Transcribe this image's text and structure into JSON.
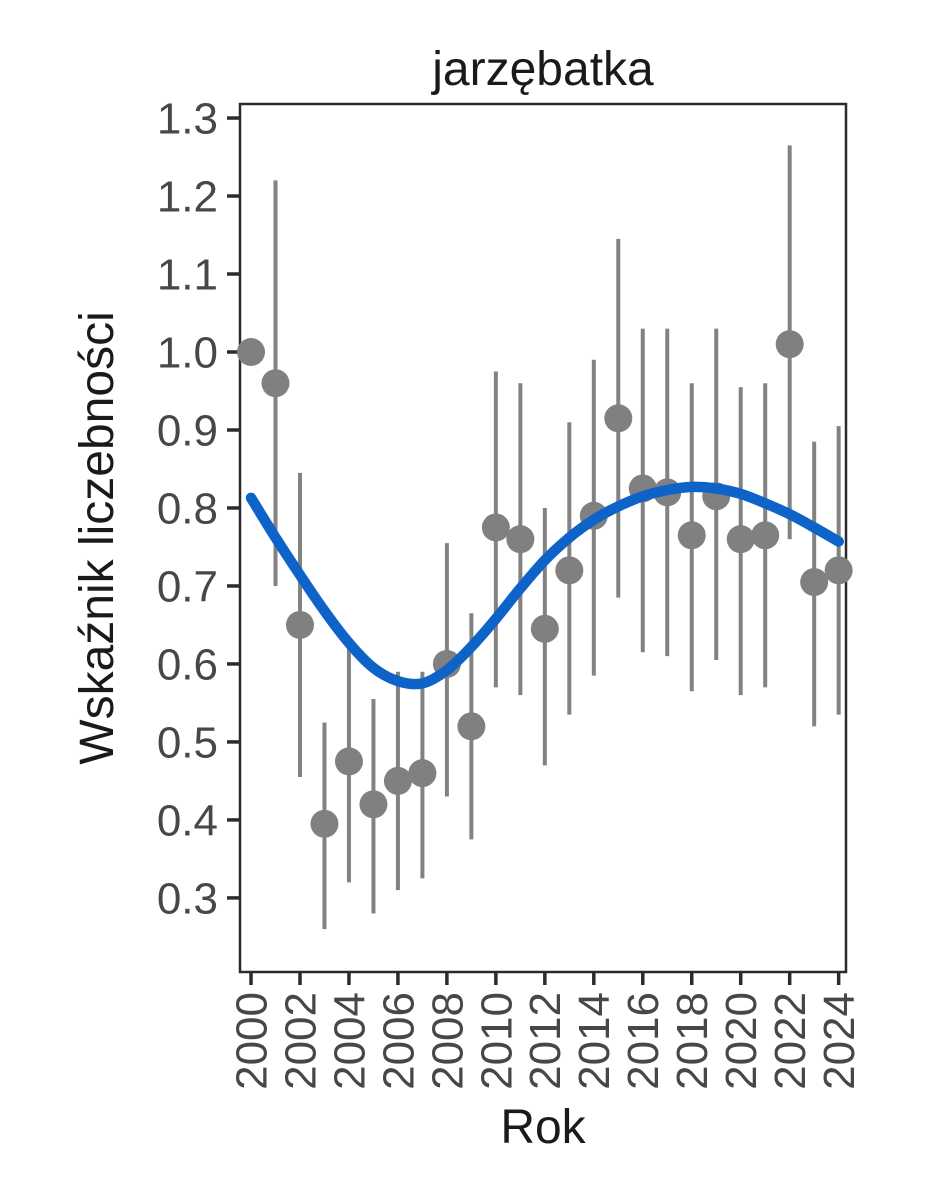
{
  "chart_data": {
    "type": "scatter",
    "title": "jarzębatka",
    "xlabel": "Rok",
    "ylabel": "Wskaźnik liczebności",
    "grid": false,
    "legend": "none",
    "xlim": [
      1999.55,
      2024.3
    ],
    "ylim": [
      0.205,
      1.318
    ],
    "x_ticks": [
      2000,
      2002,
      2004,
      2006,
      2008,
      2010,
      2012,
      2014,
      2016,
      2018,
      2020,
      2022,
      2024
    ],
    "x_tick_labels": [
      "2000",
      "2002",
      "2004",
      "2006",
      "2008",
      "2010",
      "2012",
      "2014",
      "2016",
      "2018",
      "2020",
      "2022",
      "2024"
    ],
    "y_ticks": [
      0.3,
      0.4,
      0.5,
      0.6,
      0.7,
      0.8,
      0.9,
      1.0,
      1.1,
      1.2,
      1.3
    ],
    "y_tick_labels": [
      "0.3",
      "0.4",
      "0.5",
      "0.6",
      "0.7",
      "0.8",
      "0.9",
      "1.0",
      "1.1",
      "1.2",
      "1.3"
    ],
    "colors": {
      "point": "#808080",
      "errorbar": "#828282",
      "smooth_line": "#0D63C8",
      "axis": "#2b2b2b",
      "tick_text": "#474747",
      "title_text": "#1a1a1a"
    },
    "series": [
      {
        "name": "Wskaźnik liczebności (punkty z przedziałami)",
        "points": [
          {
            "year": 2000,
            "value": 1.0,
            "lo": null,
            "hi": null
          },
          {
            "year": 2001,
            "value": 0.96,
            "lo": 0.7,
            "hi": 1.22
          },
          {
            "year": 2002,
            "value": 0.65,
            "lo": 0.455,
            "hi": 0.845
          },
          {
            "year": 2003,
            "value": 0.395,
            "lo": 0.26,
            "hi": 0.525
          },
          {
            "year": 2004,
            "value": 0.475,
            "lo": 0.32,
            "hi": 0.63
          },
          {
            "year": 2005,
            "value": 0.42,
            "lo": 0.28,
            "hi": 0.555
          },
          {
            "year": 2006,
            "value": 0.45,
            "lo": 0.31,
            "hi": 0.59
          },
          {
            "year": 2007,
            "value": 0.46,
            "lo": 0.325,
            "hi": 0.59
          },
          {
            "year": 2008,
            "value": 0.6,
            "lo": 0.43,
            "hi": 0.755
          },
          {
            "year": 2009,
            "value": 0.52,
            "lo": 0.375,
            "hi": 0.665
          },
          {
            "year": 2010,
            "value": 0.775,
            "lo": 0.57,
            "hi": 0.975
          },
          {
            "year": 2011,
            "value": 0.76,
            "lo": 0.56,
            "hi": 0.96
          },
          {
            "year": 2012,
            "value": 0.645,
            "lo": 0.47,
            "hi": 0.8
          },
          {
            "year": 2013,
            "value": 0.72,
            "lo": 0.535,
            "hi": 0.91
          },
          {
            "year": 2014,
            "value": 0.79,
            "lo": 0.585,
            "hi": 0.99
          },
          {
            "year": 2015,
            "value": 0.915,
            "lo": 0.685,
            "hi": 1.145
          },
          {
            "year": 2016,
            "value": 0.825,
            "lo": 0.615,
            "hi": 1.03
          },
          {
            "year": 2017,
            "value": 0.82,
            "lo": 0.61,
            "hi": 1.03
          },
          {
            "year": 2018,
            "value": 0.765,
            "lo": 0.565,
            "hi": 0.96
          },
          {
            "year": 2019,
            "value": 0.815,
            "lo": 0.605,
            "hi": 1.03
          },
          {
            "year": 2020,
            "value": 0.76,
            "lo": 0.56,
            "hi": 0.955
          },
          {
            "year": 2021,
            "value": 0.765,
            "lo": 0.57,
            "hi": 0.96
          },
          {
            "year": 2022,
            "value": 1.01,
            "lo": 0.76,
            "hi": 1.265
          },
          {
            "year": 2023,
            "value": 0.705,
            "lo": 0.52,
            "hi": 0.885
          },
          {
            "year": 2024,
            "value": 0.72,
            "lo": 0.535,
            "hi": 0.905
          }
        ]
      },
      {
        "name": "linia trendu (smooth)",
        "smooth": [
          {
            "year": 2000,
            "value": 0.813
          },
          {
            "year": 2001,
            "value": 0.762
          },
          {
            "year": 2002,
            "value": 0.714
          },
          {
            "year": 2003,
            "value": 0.668
          },
          {
            "year": 2004,
            "value": 0.627
          },
          {
            "year": 2005,
            "value": 0.595
          },
          {
            "year": 2006,
            "value": 0.578
          },
          {
            "year": 2007,
            "value": 0.575
          },
          {
            "year": 2008,
            "value": 0.592
          },
          {
            "year": 2009,
            "value": 0.622
          },
          {
            "year": 2010,
            "value": 0.658
          },
          {
            "year": 2011,
            "value": 0.697
          },
          {
            "year": 2012,
            "value": 0.733
          },
          {
            "year": 2013,
            "value": 0.762
          },
          {
            "year": 2014,
            "value": 0.785
          },
          {
            "year": 2015,
            "value": 0.802
          },
          {
            "year": 2016,
            "value": 0.815
          },
          {
            "year": 2017,
            "value": 0.823
          },
          {
            "year": 2018,
            "value": 0.827
          },
          {
            "year": 2019,
            "value": 0.825
          },
          {
            "year": 2020,
            "value": 0.818
          },
          {
            "year": 2021,
            "value": 0.806
          },
          {
            "year": 2022,
            "value": 0.792
          },
          {
            "year": 2023,
            "value": 0.775
          },
          {
            "year": 2024,
            "value": 0.757
          }
        ]
      }
    ]
  }
}
